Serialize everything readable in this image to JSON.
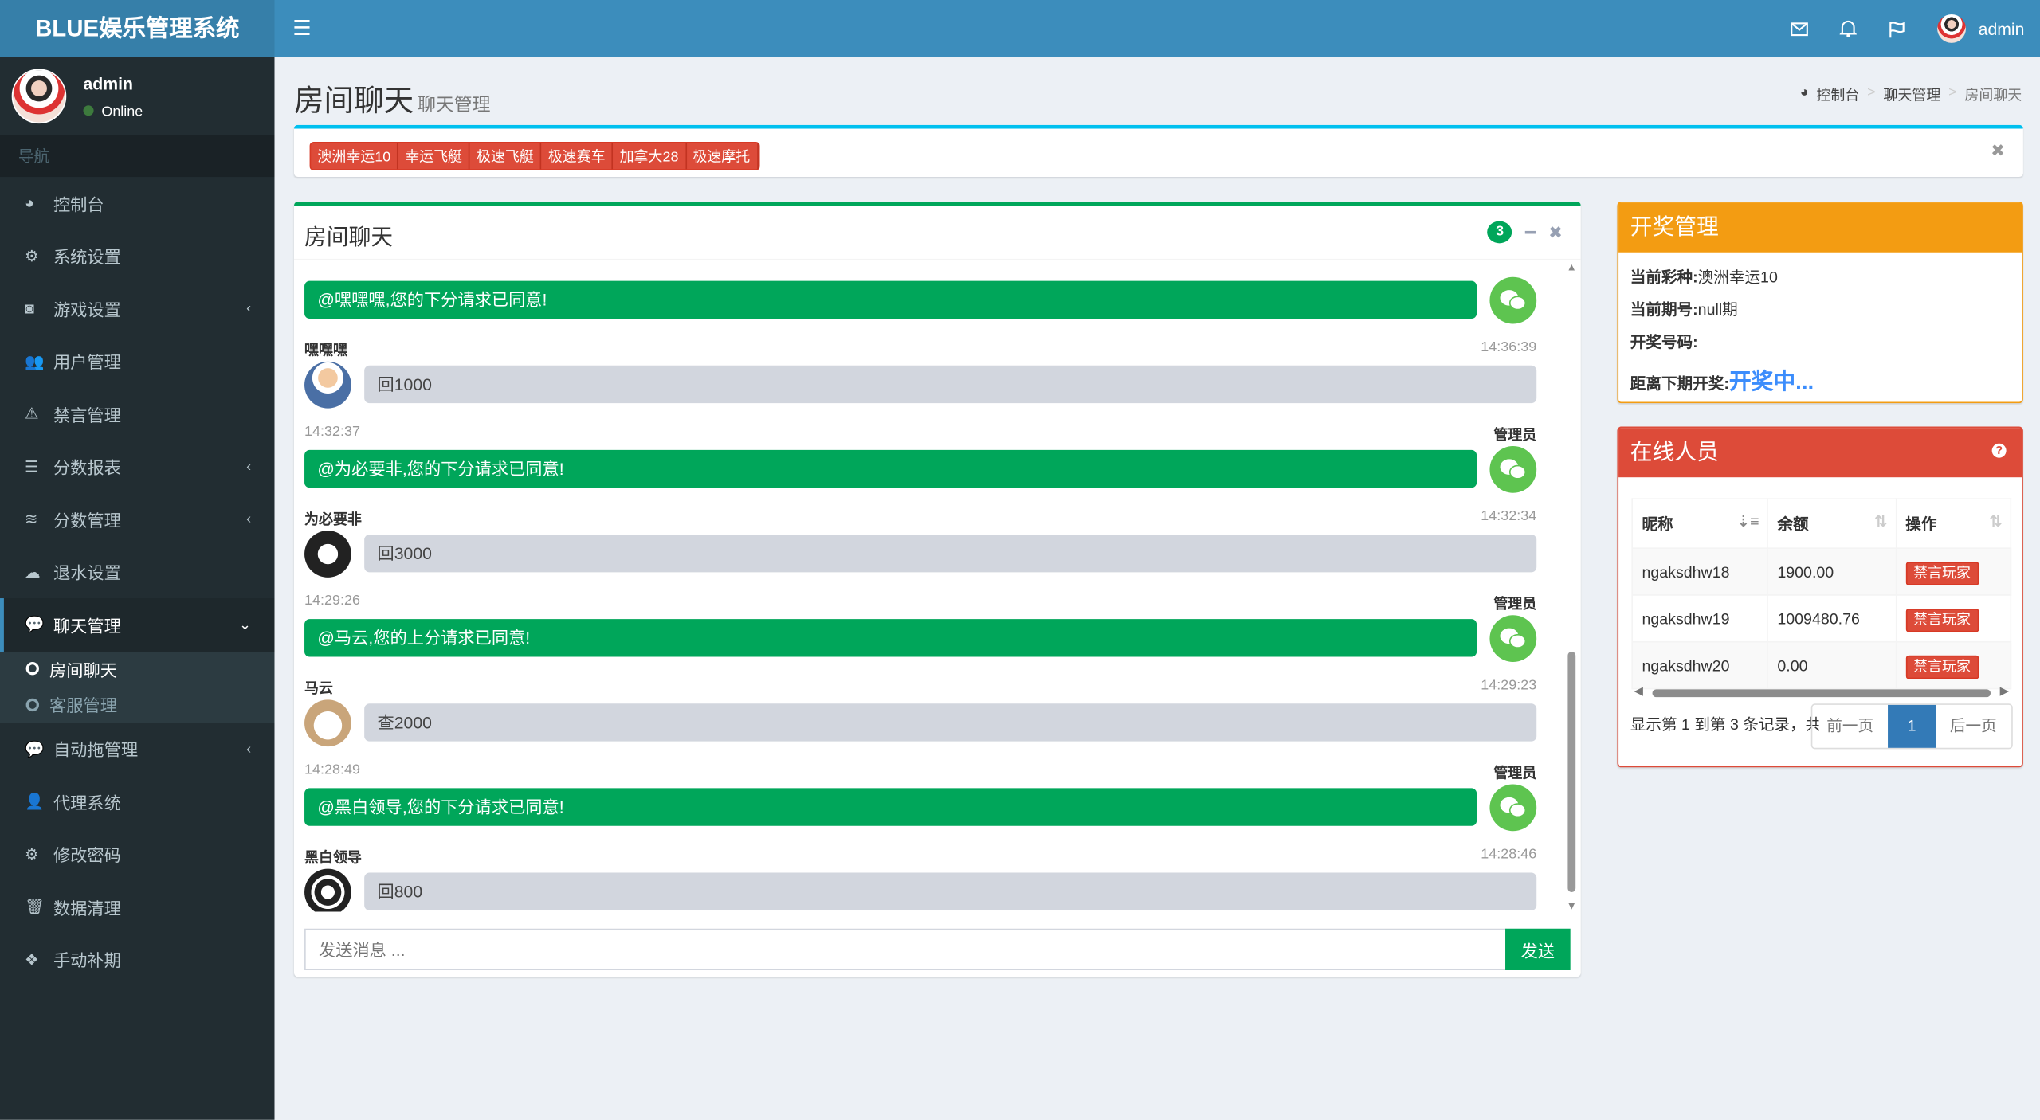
{
  "app": {
    "title": "BLUE娱乐管理系统",
    "user": "admin"
  },
  "navbar": {
    "icons": [
      "envelope-icon",
      "bell-icon",
      "flag-icon"
    ],
    "user": "admin"
  },
  "sidebar": {
    "user": "admin",
    "status": "Online",
    "header": "导航",
    "items": [
      {
        "label": "控制台",
        "icon": "dashboard-icon"
      },
      {
        "label": "系统设置",
        "icon": "cogs-icon"
      },
      {
        "label": "游戏设置",
        "icon": "gamepad-icon",
        "chevron": true
      },
      {
        "label": "用户管理",
        "icon": "users-icon"
      },
      {
        "label": "禁言管理",
        "icon": "warning-icon"
      },
      {
        "label": "分数报表",
        "icon": "list-icon",
        "chevron": true
      },
      {
        "label": "分数管理",
        "icon": "database-icon",
        "chevron": true
      },
      {
        "label": "退水设置",
        "icon": "cloud-upload-icon"
      },
      {
        "label": "聊天管理",
        "icon": "comments-icon",
        "active": true,
        "expanded": true,
        "children": [
          {
            "label": "房间聊天",
            "active": true
          },
          {
            "label": "客服管理"
          }
        ]
      },
      {
        "label": "自动拖管理",
        "icon": "comment-icon",
        "chevron": true
      },
      {
        "label": "代理系统",
        "icon": "user-plus-icon"
      },
      {
        "label": "修改密码",
        "icon": "gear-icon"
      },
      {
        "label": "数据清理",
        "icon": "trash-icon"
      },
      {
        "label": "手动补期",
        "icon": "cubes-icon"
      }
    ]
  },
  "page": {
    "title": "房间聊天",
    "subtitle": "聊天管理",
    "breadcrumb": [
      "控制台",
      "聊天管理",
      "房间聊天"
    ]
  },
  "lottery_tags": [
    "澳洲幸运10",
    "幸运飞艇",
    "极速飞艇",
    "极速赛车",
    "加拿大28",
    "极速摩托"
  ],
  "chat": {
    "title": "房间聊天",
    "badge": "3",
    "input_placeholder": "发送消息 ...",
    "send_label": "发送",
    "messages": [
      {
        "side": "right",
        "name": "",
        "time": "",
        "text": "@嘿嘿嘿,您的下分请求已同意!"
      },
      {
        "side": "left",
        "name": "嘿嘿嘿",
        "time": "14:36:39",
        "text": "回1000"
      },
      {
        "side": "right",
        "name": "管理员",
        "time": "14:32:37",
        "text": "@为必要非,您的下分请求已同意!"
      },
      {
        "side": "left",
        "name": "为必要非",
        "time": "14:32:34",
        "text": "回3000"
      },
      {
        "side": "right",
        "name": "管理员",
        "time": "14:29:26",
        "text": "@马云,您的上分请求已同意!"
      },
      {
        "side": "left",
        "name": "马云",
        "time": "14:29:23",
        "text": "查2000"
      },
      {
        "side": "right",
        "name": "管理员",
        "time": "14:28:49",
        "text": "@黑白领导,您的下分请求已同意!"
      },
      {
        "side": "left",
        "name": "黑白领导",
        "time": "14:28:46",
        "text": "回800"
      }
    ]
  },
  "draw": {
    "title": "开奖管理",
    "lines": [
      {
        "label": "当前彩种:",
        "value": "澳洲幸运10"
      },
      {
        "label": "当前期号:",
        "value": "null期"
      },
      {
        "label": "开奖号码:",
        "value": ""
      }
    ],
    "countdown_label": "距离下期开奖:",
    "countdown_value": "开奖中..."
  },
  "online": {
    "title": "在线人员",
    "columns": [
      "昵称",
      "余额",
      "操作"
    ],
    "rows": [
      {
        "name": "ngaksdhw18",
        "balance": "1900.00",
        "action": "禁言玩家"
      },
      {
        "name": "ngaksdhw19",
        "balance": "1009480.76",
        "action": "禁言玩家"
      },
      {
        "name": "ngaksdhw20",
        "balance": "0.00",
        "action": "禁言玩家"
      }
    ],
    "info": "显示第 1 到第 3 条记录，共",
    "pager": {
      "prev": "前一页",
      "current": "1",
      "next": "后一页"
    }
  },
  "colors": {
    "navbar": "#3c8dbc",
    "sidebar": "#222d32",
    "green": "#00a65a",
    "orange": "#f39c12",
    "red": "#dd4b39",
    "blue": "#337ab7"
  }
}
